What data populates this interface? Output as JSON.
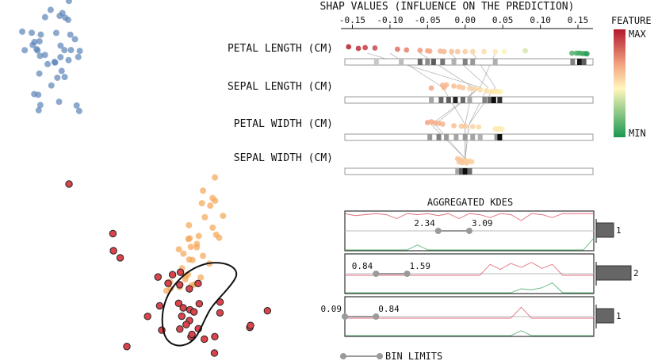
{
  "top_axis_title": "SHAP VALUES (INFLUENCE ON THE PREDICTION)",
  "feature_legend": {
    "title": "FEATURE",
    "max_label": "MAX",
    "min_label": "MIN",
    "colors": [
      "#b2182b",
      "#f4a582",
      "#fff7bc",
      "#1a9850"
    ]
  },
  "kde_title": "AGGREGATED KDES",
  "bin_limits_label": "BIN LIMITS",
  "colors": {
    "blue": "#5b84b8",
    "orange": "#f5a553",
    "red": "#d9444d",
    "green": "#2e9a4a",
    "gray": "#9a9a9a"
  },
  "chart_data": [
    {
      "type": "scatter",
      "chart": "shap-beeswarm",
      "title": "SHAP VALUES (INFLUENCE ON THE PREDICTION)",
      "x_ticks": [
        "-0.15",
        "-0.10",
        "-0.05",
        "0.00",
        "0.05",
        "0.10",
        "0.15"
      ],
      "xlim": [
        -0.16,
        0.17
      ],
      "features": [
        {
          "name": "PETAL LENGTH (CM)",
          "points": [
            [
              -0.155,
              0.9
            ],
            [
              -0.142,
              0.7
            ],
            [
              -0.133,
              0.8
            ],
            [
              -0.12,
              0.75
            ],
            [
              -0.09,
              0.6
            ],
            [
              -0.078,
              0.5
            ],
            [
              -0.06,
              0.45
            ],
            [
              -0.05,
              0.4
            ],
            [
              -0.047,
              0.35
            ],
            [
              -0.033,
              0.35
            ],
            [
              -0.028,
              0.3
            ],
            [
              -0.018,
              0.3
            ],
            [
              -0.01,
              0.3
            ],
            [
              0.0,
              0.3
            ],
            [
              0.01,
              0.3
            ],
            [
              0.025,
              0.3
            ],
            [
              0.04,
              0.3
            ],
            [
              0.052,
              0.3
            ],
            [
              0.08,
              0.4
            ],
            [
              0.142,
              0.1
            ],
            [
              0.148,
              0.1
            ],
            [
              0.152,
              0.1
            ],
            [
              0.156,
              0.05
            ],
            [
              0.16,
              0.05
            ],
            [
              0.162,
              0.02
            ]
          ],
          "kde_bins": [
            [
              -0.118,
              0.15
            ],
            [
              -0.085,
              0.2
            ],
            [
              -0.06,
              0.55
            ],
            [
              -0.05,
              0.4
            ],
            [
              -0.042,
              0.6
            ],
            [
              -0.03,
              0.5
            ],
            [
              -0.015,
              0.25
            ],
            [
              0.0,
              0.45
            ],
            [
              0.01,
              0.35
            ],
            [
              0.04,
              0.25
            ],
            [
              0.143,
              0.45
            ],
            [
              0.152,
              0.9
            ],
            [
              0.158,
              0.6
            ]
          ]
        },
        {
          "name": "SEPAL LENGTH (CM)",
          "points": [
            [
              -0.03,
              0.85
            ],
            [
              -0.025,
              0.9
            ],
            [
              -0.015,
              0.75
            ],
            [
              -0.008,
              0.65
            ],
            [
              -0.003,
              0.55
            ],
            [
              0.006,
              0.45
            ],
            [
              0.013,
              0.4
            ],
            [
              0.02,
              0.3
            ],
            [
              -0.045,
              0.5
            ],
            [
              -0.028,
              0.55
            ],
            [
              0.028,
              0.15
            ],
            [
              0.033,
              0.05
            ],
            [
              0.036,
              0.08
            ],
            [
              0.04,
              0.05
            ],
            [
              0.045,
              0.02
            ],
            [
              0.041,
              0.1
            ],
            [
              0.047,
              0.04
            ]
          ],
          "kde_bins": [
            [
              -0.045,
              0.3
            ],
            [
              -0.032,
              0.55
            ],
            [
              -0.022,
              0.6
            ],
            [
              -0.013,
              0.85
            ],
            [
              -0.003,
              0.55
            ],
            [
              0.006,
              0.3
            ],
            [
              0.026,
              0.45
            ],
            [
              0.033,
              0.55
            ],
            [
              0.038,
              0.95
            ],
            [
              0.046,
              0.8
            ]
          ]
        },
        {
          "name": "PETAL WIDTH (CM)",
          "points": [
            [
              -0.05,
              0.85
            ],
            [
              -0.045,
              0.95
            ],
            [
              -0.04,
              0.8
            ],
            [
              -0.035,
              0.75
            ],
            [
              -0.03,
              0.65
            ],
            [
              -0.015,
              0.45
            ],
            [
              -0.005,
              0.4
            ],
            [
              0.0,
              0.4
            ],
            [
              0.01,
              0.35
            ],
            [
              0.018,
              0.3
            ],
            [
              0.04,
              0.05
            ],
            [
              0.043,
              0.03
            ],
            [
              0.046,
              0.05
            ],
            [
              0.049,
              0.02
            ],
            [
              0.044,
              0.08
            ]
          ],
          "kde_bins": [
            [
              -0.047,
              0.35
            ],
            [
              -0.035,
              0.45
            ],
            [
              -0.025,
              0.35
            ],
            [
              -0.012,
              0.3
            ],
            [
              0.0,
              0.35
            ],
            [
              0.01,
              0.3
            ],
            [
              0.02,
              0.25
            ],
            [
              0.042,
              0.35
            ],
            [
              0.046,
              0.95
            ]
          ]
        },
        {
          "name": "SEPAL WIDTH (CM)",
          "points": [
            [
              -0.01,
              0.6
            ],
            [
              -0.006,
              0.45
            ],
            [
              -0.002,
              0.3
            ],
            [
              0.0,
              0.4
            ],
            [
              0.003,
              0.2
            ],
            [
              0.006,
              0.3
            ],
            [
              0.009,
              0.2
            ],
            [
              -0.004,
              0.1
            ],
            [
              -0.008,
              0.2
            ],
            [
              0.002,
              0.05
            ]
          ],
          "kde_bins": [
            [
              -0.01,
              0.3
            ],
            [
              -0.005,
              0.6
            ],
            [
              0.0,
              0.95
            ],
            [
              0.006,
              0.55
            ]
          ]
        }
      ]
    },
    {
      "type": "line",
      "chart": "aggregated-kdes",
      "title": "AGGREGATED KDES",
      "rows": [
        {
          "bin_min": "2.34",
          "bin_max": "3.09",
          "count": 1,
          "hist_value": "1",
          "red_curve": [
            0.95,
            0.85,
            0.9,
            0.95,
            0.9,
            0.7,
            0.95,
            0.9,
            0.95,
            0.85,
            0.95,
            0.7,
            0.95,
            0.9,
            0.75,
            0.95,
            0.9,
            0.6,
            0.95,
            0.9,
            0.75,
            0.95,
            0.95,
            0.95,
            0.95
          ],
          "green_curve": [
            0.0,
            0.0,
            0.0,
            0.0,
            0.0,
            0.0,
            0.0,
            0.25,
            0.0,
            0.0,
            0.0,
            0.0,
            0.0,
            0.0,
            0.0,
            0.0,
            0.0,
            0.0,
            0.0,
            0.0,
            0.0,
            0.0,
            0.0,
            0.0,
            0.6
          ]
        },
        {
          "bin_min": "0.84",
          "bin_max": "1.59",
          "count": 2,
          "hist_value": "2",
          "red_curve": [
            0.0,
            0.0,
            0.0,
            0.0,
            0.0,
            0.0,
            0.0,
            0.0,
            0.0,
            0.0,
            0.0,
            0.0,
            0.0,
            0.0,
            0.55,
            0.3,
            0.6,
            0.4,
            0.65,
            0.35,
            0.55,
            0.0,
            0.0,
            0.0,
            0.0
          ],
          "green_curve": [
            0.0,
            0.0,
            0.0,
            0.0,
            0.0,
            0.0,
            0.0,
            0.0,
            0.0,
            0.0,
            0.0,
            0.0,
            0.0,
            0.0,
            0.0,
            0.0,
            0.0,
            0.2,
            0.15,
            0.25,
            0.5,
            0.0,
            0.0,
            0.0,
            0.0
          ]
        },
        {
          "bin_min": "0.09",
          "bin_max": "0.84",
          "count": 1,
          "hist_value": "1",
          "red_curve": [
            0.0,
            0.0,
            0.0,
            0.0,
            0.0,
            0.0,
            0.0,
            0.0,
            0.0,
            0.0,
            0.0,
            0.0,
            0.0,
            0.0,
            0.0,
            0.0,
            0.0,
            0.55,
            0.0,
            0.0,
            0.0,
            0.0,
            0.0,
            0.0,
            0.0
          ],
          "green_curve": [
            0.0,
            0.0,
            0.0,
            0.0,
            0.0,
            0.0,
            0.0,
            0.0,
            0.0,
            0.0,
            0.0,
            0.0,
            0.0,
            0.0,
            0.0,
            0.0,
            0.0,
            0.25,
            0.0,
            0.0,
            0.0,
            0.0,
            0.0,
            0.0,
            0.0
          ]
        }
      ]
    },
    {
      "type": "scatter",
      "chart": "embedding-projection",
      "clusters": [
        {
          "color": "blue",
          "cx": 0.08,
          "cy": 0.13,
          "n": 45,
          "spread": [
            0.022,
            0.08
          ]
        },
        {
          "color": "orange",
          "cx": 0.305,
          "cy": 0.67,
          "n": 35,
          "spread": [
            0.018,
            0.09
          ]
        },
        {
          "color": "red",
          "cx": 0.29,
          "cy": 0.86,
          "n": 35,
          "spread": [
            0.035,
            0.08
          ],
          "outlined": true
        }
      ]
    }
  ]
}
